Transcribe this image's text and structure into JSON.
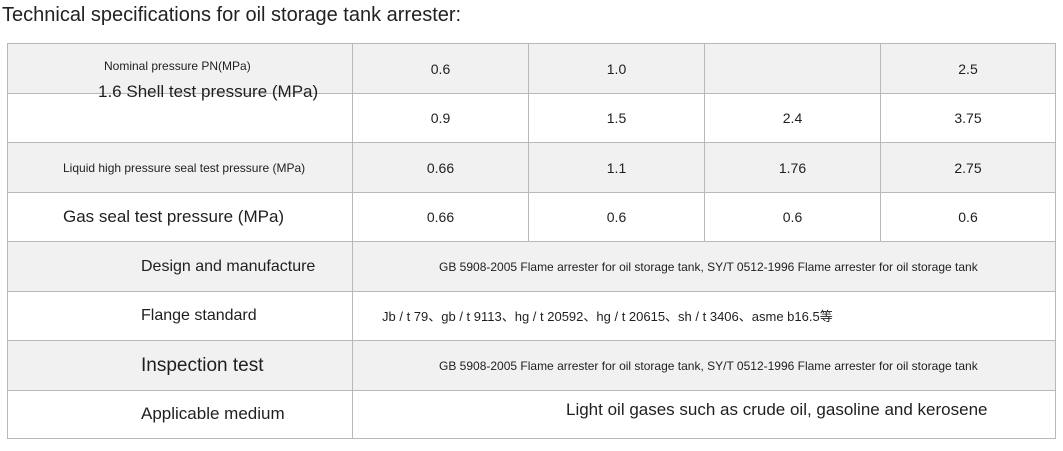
{
  "title": "Technical specifications for oil storage tank arrester:",
  "table": {
    "row1": {
      "label": "Nominal pressure PN(MPa)",
      "overlay": "1.6 Shell test pressure (MPa)",
      "values": [
        "0.6",
        "1.0",
        "",
        "2.5"
      ]
    },
    "row2": {
      "label": "",
      "values": [
        "0.9",
        "1.5",
        "2.4",
        "3.75"
      ]
    },
    "row3": {
      "label": "Liquid high pressure seal test pressure (MPa)",
      "values": [
        "0.66",
        "1.1",
        "1.76",
        "2.75"
      ]
    },
    "row4": {
      "label": "Gas seal test pressure (MPa)",
      "values": [
        "0.66",
        "0.6",
        "0.6",
        "0.6"
      ]
    },
    "row5": {
      "label": "Design and manufacture",
      "value": "GB 5908-2005 Flame arrester for oil storage tank, SY/T 0512-1996 Flame arrester for oil storage tank"
    },
    "row6": {
      "label": "Flange standard",
      "value": "Jb / t 79、gb / t 9113、hg / t 20592、hg / t 20615、sh / t 3406、asme b16.5等"
    },
    "row7": {
      "label": "Inspection test",
      "value": "GB 5908-2005 Flame arrester for oil storage tank, SY/T 0512-1996 Flame arrester for oil storage tank"
    },
    "row8": {
      "label": "Applicable medium",
      "value": "Light oil gases such as crude oil, gasoline and kerosene"
    }
  }
}
